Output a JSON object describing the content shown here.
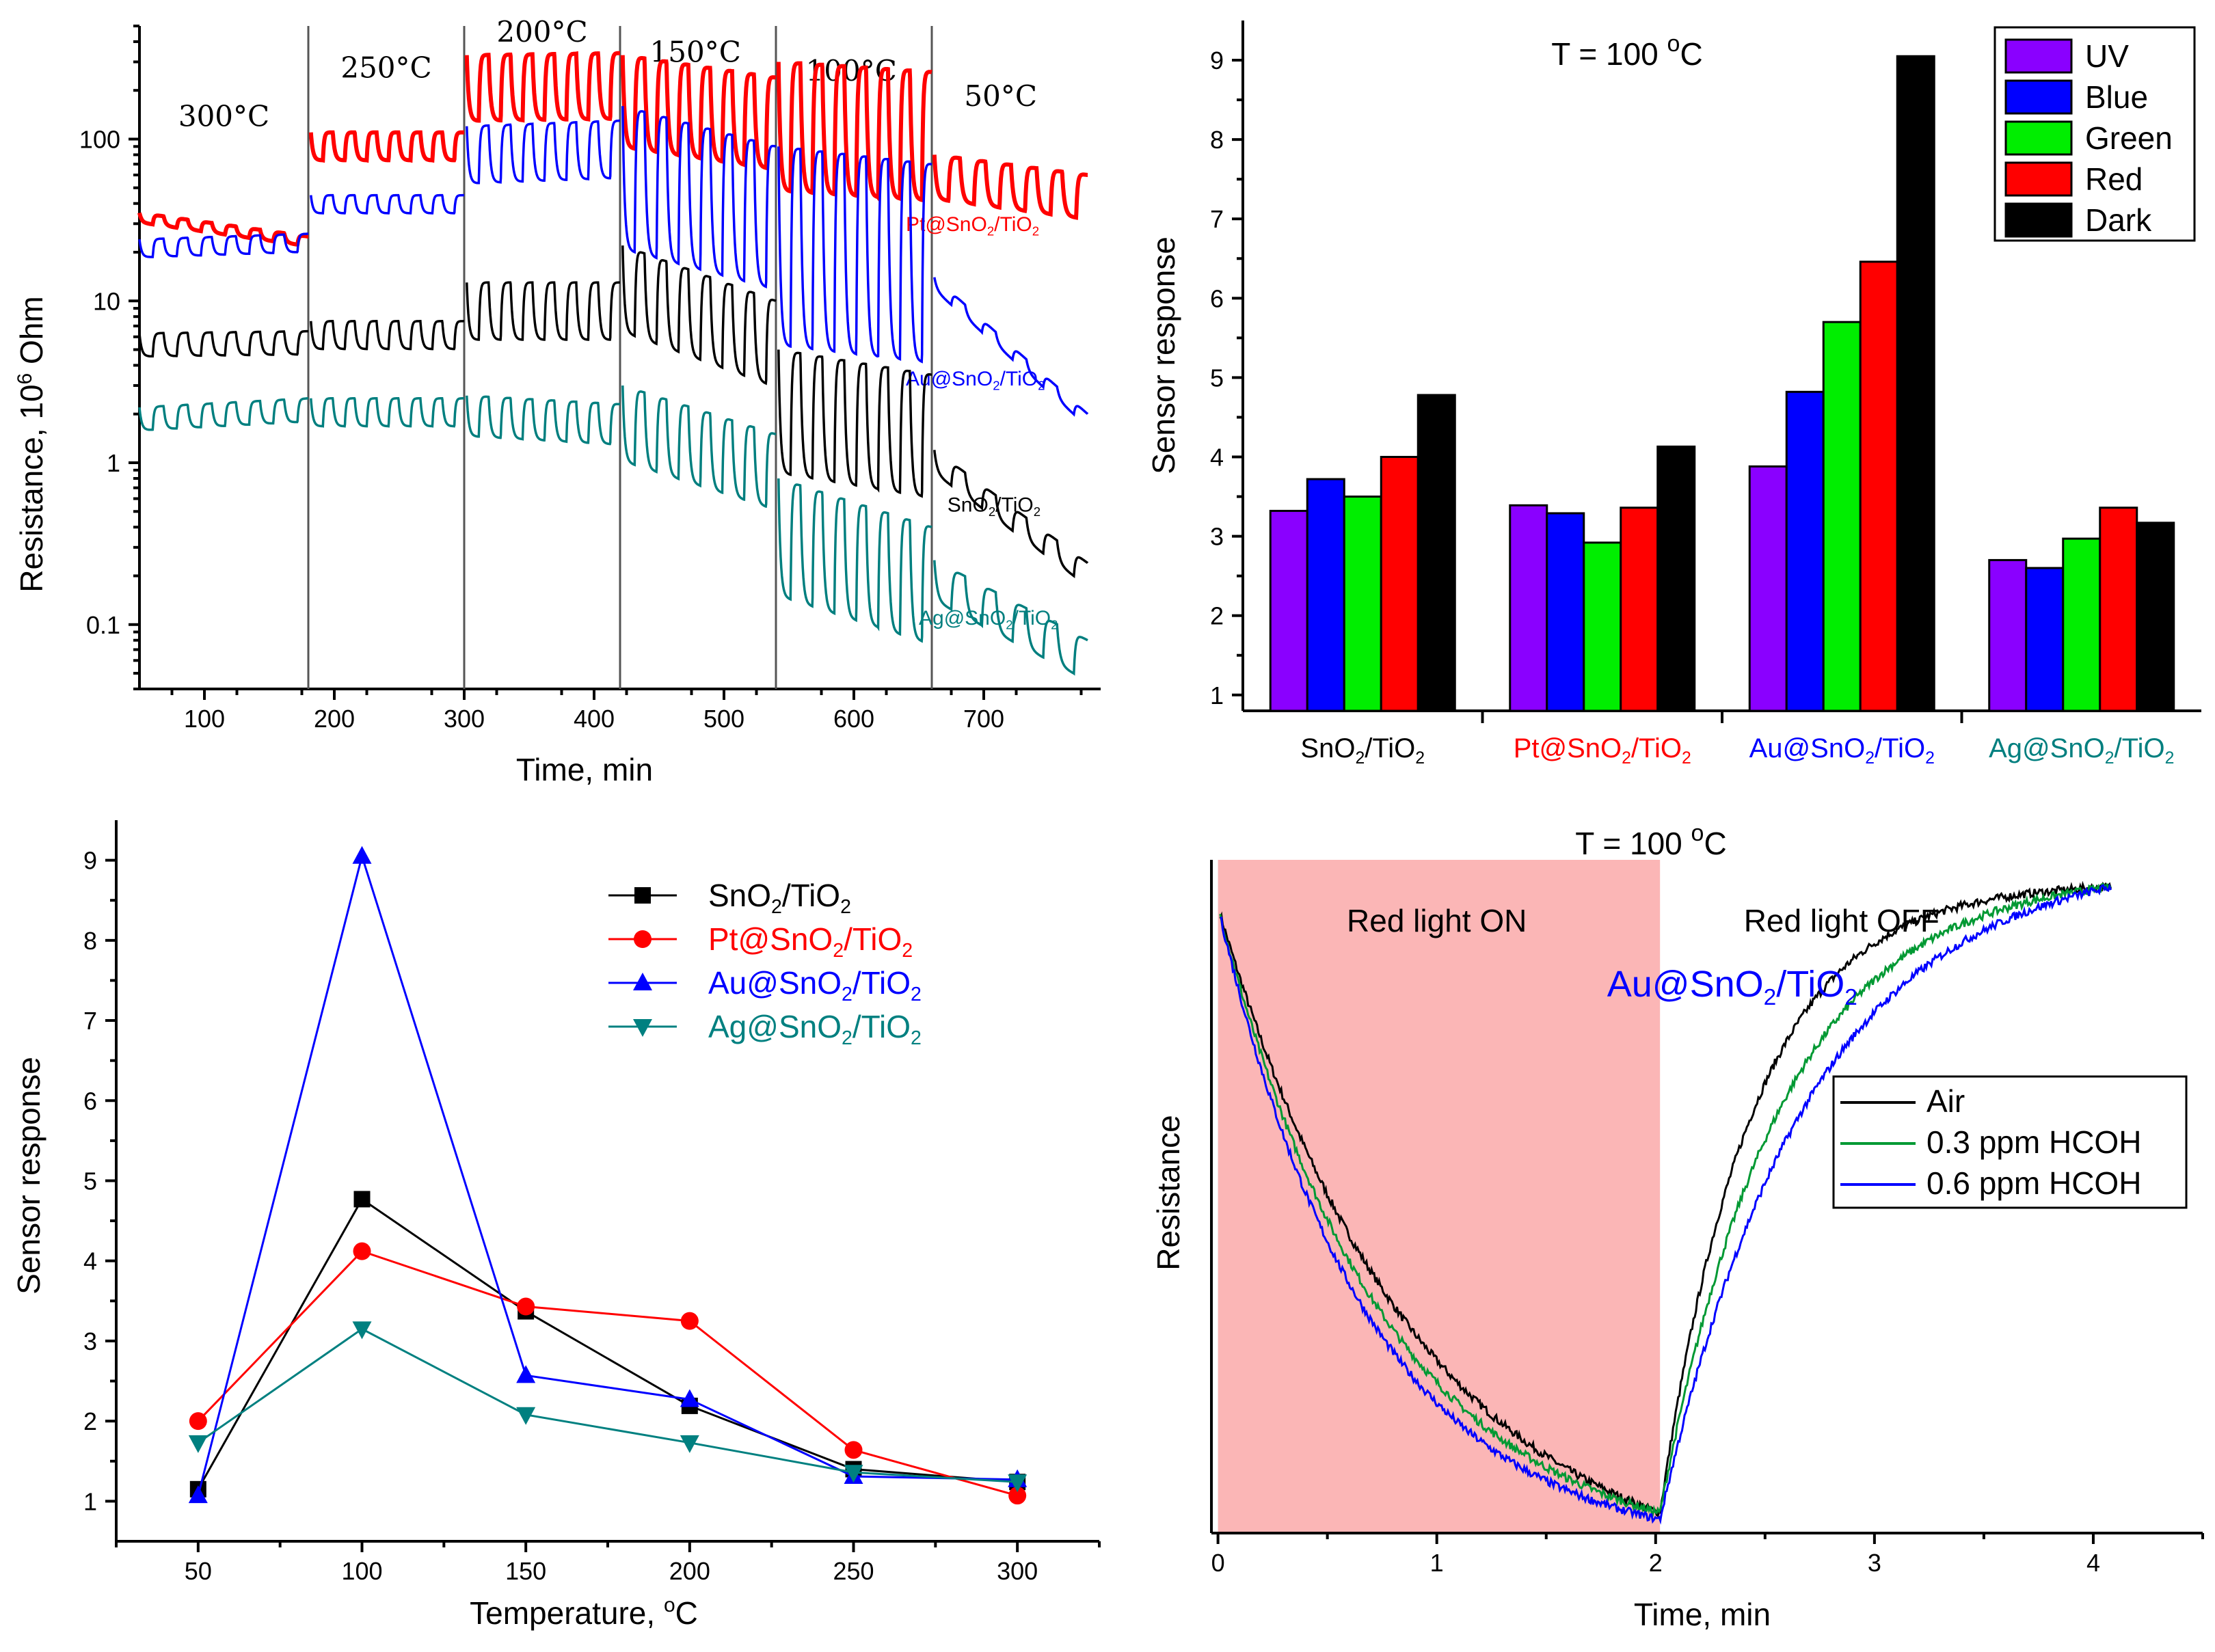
{
  "chart_data": [
    {
      "type": "line",
      "panel": "top-left",
      "title": "",
      "xlabel": "Time, min",
      "ylabel": "Resistance, 10",
      "ylabel_sup": "6",
      "ylabel_suffix": " Ohm",
      "xlim": [
        50,
        790
      ],
      "ylim": [
        0.04,
        500
      ],
      "yscale": "log",
      "xticks": [
        100,
        200,
        300,
        400,
        500,
        600,
        700
      ],
      "yticks": [
        0.1,
        1,
        10,
        100
      ],
      "ytick_labels": [
        "0.1",
        "1",
        "10",
        "100"
      ],
      "dividers": [
        180,
        300,
        420,
        540,
        660
      ],
      "temperature_labels": [
        {
          "text": "300°C",
          "x": 115,
          "y": 120
        },
        {
          "text": "250°C",
          "x": 240,
          "y": 240
        },
        {
          "text": "200°C",
          "x": 360,
          "y": 400
        },
        {
          "text": "150°C",
          "x": 478,
          "y": 300
        },
        {
          "text": "100°C",
          "x": 598,
          "y": 230
        },
        {
          "text": "50°C",
          "x": 713,
          "y": 160
        }
      ],
      "series": [
        {
          "name": "Pt@SnO2/TiO2",
          "color": "#ff0000",
          "label_main": "Pt@SnO",
          "label_mid": "/TiO",
          "label_x": 640,
          "label_y": 27,
          "segments": [
            {
              "x0": 50,
              "x1": 180,
              "base": 35,
              "end": 25,
              "amp": 1.15,
              "cycles": 7
            },
            {
              "x0": 182,
              "x1": 300,
              "base": 110,
              "end": 110,
              "amp": 1.5,
              "cycles": 7
            },
            {
              "x0": 302,
              "x1": 420,
              "base": 330,
              "end": 340,
              "amp": 2.6,
              "cycles": 7
            },
            {
              "x0": 422,
              "x1": 540,
              "base": 330,
              "end": 240,
              "amp": 3.8,
              "cycles": 7
            },
            {
              "x0": 542,
              "x1": 660,
              "base": 300,
              "end": 260,
              "amp": 6.5,
              "cycles": 7
            },
            {
              "x0": 662,
              "x1": 780,
              "base": 80,
              "end": 60,
              "amp": 1.9,
              "cycles": 6
            }
          ]
        },
        {
          "name": "Au@SnO2/TiO2",
          "color": "#0000ff",
          "label_main": "Au@SnO",
          "label_mid": "/TiO",
          "label_x": 640,
          "label_y": 3.0,
          "segments": [
            {
              "x0": 50,
              "x1": 180,
              "base": 24,
              "end": 26,
              "amp": 1.3,
              "cycles": 7
            },
            {
              "x0": 182,
              "x1": 300,
              "base": 45,
              "end": 45,
              "amp": 1.3,
              "cycles": 7
            },
            {
              "x0": 302,
              "x1": 420,
              "base": 120,
              "end": 130,
              "amp": 2.3,
              "cycles": 7
            },
            {
              "x0": 422,
              "x1": 540,
              "base": 160,
              "end": 90,
              "amp": 8,
              "cycles": 7
            },
            {
              "x0": 542,
              "x1": 660,
              "base": 90,
              "end": 70,
              "amp": 18,
              "cycles": 7
            },
            {
              "x0": 662,
              "x1": 780,
              "base": 14,
              "end": 2.0,
              "amp": 1.2,
              "cycles": 5
            }
          ]
        },
        {
          "name": "SnO2/TiO2",
          "color": "#000000",
          "label_main": "SnO",
          "label_mid": "/TiO",
          "label_x": 672,
          "label_y": 0.5,
          "segments": [
            {
              "x0": 50,
              "x1": 180,
              "base": 6.3,
              "end": 6.5,
              "amp": 1.4,
              "cycles": 7
            },
            {
              "x0": 182,
              "x1": 300,
              "base": 7.5,
              "end": 7.5,
              "amp": 1.5,
              "cycles": 7
            },
            {
              "x0": 302,
              "x1": 420,
              "base": 13,
              "end": 13,
              "amp": 2.3,
              "cycles": 7
            },
            {
              "x0": 422,
              "x1": 540,
              "base": 22,
              "end": 10,
              "amp": 3.5,
              "cycles": 7
            },
            {
              "x0": 542,
              "x1": 660,
              "base": 5,
              "end": 3.5,
              "amp": 6,
              "cycles": 7
            },
            {
              "x0": 662,
              "x1": 780,
              "base": 1.2,
              "end": 0.24,
              "amp": 1.4,
              "cycles": 5
            }
          ]
        },
        {
          "name": "Ag@SnO2/TiO2",
          "color": "#007f7f",
          "label_main": "Ag@SnO",
          "label_mid": "/TiO",
          "label_x": 650,
          "label_y": 0.1,
          "segments": [
            {
              "x0": 50,
              "x1": 180,
              "base": 2.2,
              "end": 2.5,
              "amp": 1.4,
              "cycles": 7
            },
            {
              "x0": 182,
              "x1": 300,
              "base": 2.5,
              "end": 2.5,
              "amp": 1.5,
              "cycles": 7
            },
            {
              "x0": 302,
              "x1": 420,
              "base": 2.6,
              "end": 2.3,
              "amp": 1.8,
              "cycles": 7
            },
            {
              "x0": 422,
              "x1": 540,
              "base": 3.0,
              "end": 1.5,
              "amp": 3.0,
              "cycles": 7
            },
            {
              "x0": 542,
              "x1": 660,
              "base": 0.8,
              "end": 0.4,
              "amp": 5.5,
              "cycles": 7
            },
            {
              "x0": 662,
              "x1": 780,
              "base": 0.25,
              "end": 0.08,
              "amp": 1.8,
              "cycles": 5
            }
          ]
        }
      ]
    },
    {
      "type": "bar",
      "panel": "top-right",
      "title": "T = 100 ",
      "title_sup": "o",
      "title_suffix": "C",
      "xlabel": "",
      "ylabel": "Sensor response",
      "ylim": [
        0.8,
        9.5
      ],
      "yticks": [
        1,
        2,
        3,
        4,
        5,
        6,
        7,
        8,
        9
      ],
      "legend_position": "top-right",
      "categories": [
        {
          "main": "SnO",
          "mid": "/TiO",
          "color": "#000000"
        },
        {
          "main": "Pt@SnO",
          "mid": "/TiO",
          "color": "#ff0000"
        },
        {
          "main": "Au@SnO",
          "mid": "/TiO",
          "color": "#0000ff"
        },
        {
          "main": "Ag@SnO",
          "mid": "/TiO",
          "color": "#007f7f"
        }
      ],
      "series": [
        {
          "name": "UV",
          "color": "#8a00ff",
          "values": [
            3.32,
            3.39,
            3.88,
            2.7
          ]
        },
        {
          "name": "Blue",
          "color": "#0000ff",
          "values": [
            3.72,
            3.29,
            4.82,
            2.6
          ]
        },
        {
          "name": "Green",
          "color": "#00ee00",
          "values": [
            3.5,
            2.92,
            5.7,
            2.97
          ]
        },
        {
          "name": "Red",
          "color": "#ff0000",
          "values": [
            4.0,
            3.36,
            6.46,
            3.36
          ]
        },
        {
          "name": "Dark",
          "color": "#000000",
          "values": [
            4.78,
            4.13,
            9.05,
            3.17
          ]
        }
      ]
    },
    {
      "type": "line",
      "panel": "bottom-left",
      "title": "",
      "xlabel": "Temperature, ",
      "xlabel_sup": "o",
      "xlabel_suffix": "C",
      "ylabel": "Sensor response",
      "xlim": [
        25,
        325
      ],
      "ylim": [
        0.5,
        9.5
      ],
      "x": [
        50,
        100,
        150,
        200,
        250,
        300
      ],
      "xticks": [
        50,
        100,
        150,
        200,
        250,
        300
      ],
      "yticks": [
        1,
        2,
        3,
        4,
        5,
        6,
        7,
        8,
        9
      ],
      "legend_position": "top-right",
      "series": [
        {
          "name": "SnO2/TiO2",
          "main": "SnO",
          "mid": "/TiO",
          "color": "#000000",
          "marker": "square",
          "values": [
            1.15,
            4.77,
            3.37,
            2.19,
            1.4,
            1.24
          ]
        },
        {
          "name": "Pt@SnO2/TiO2",
          "main": "Pt@SnO",
          "mid": "/TiO",
          "color": "#ff0000",
          "marker": "circle",
          "values": [
            2.0,
            4.12,
            3.43,
            3.25,
            1.64,
            1.07
          ]
        },
        {
          "name": "Au@SnO2/TiO2",
          "main": "Au@SnO",
          "mid": "/TiO",
          "color": "#0000ff",
          "marker": "triangle-up",
          "values": [
            1.07,
            9.05,
            2.57,
            2.27,
            1.31,
            1.27
          ]
        },
        {
          "name": "Ag@SnO2/TiO2",
          "main": "Ag@SnO",
          "mid": "/TiO",
          "color": "#008080",
          "marker": "triangle-down",
          "values": [
            1.73,
            3.15,
            2.08,
            1.73,
            1.36,
            1.24
          ]
        }
      ]
    },
    {
      "type": "line",
      "panel": "bottom-right",
      "title": "T = 100 ",
      "title_sup": "o",
      "title_suffix": "C",
      "xlabel": "Time, min",
      "ylabel": "Resistance",
      "xlim": [
        -0.03,
        4.5
      ],
      "ylim": [
        0,
        1
      ],
      "xticks": [
        0,
        1,
        2,
        3,
        4
      ],
      "light_on_range": [
        0,
        2.02
      ],
      "light_on_label": "Red light ON",
      "light_off_label": "Red light OFF",
      "sample_main": "Au@SnO",
      "sample_mid": "/TiO",
      "legend_position": "center-right",
      "series": [
        {
          "name": "Air",
          "color": "#000000",
          "start": 0.93,
          "low": 0.03,
          "end": 0.96,
          "decay_shape": 0.45,
          "recovery_tau": 0.42
        },
        {
          "name": "0.3 ppm HCOH",
          "color": "#009933",
          "start": 0.93,
          "low": 0.03,
          "end": 0.96,
          "decay_shape": 0.38,
          "recovery_tau": 0.55
        },
        {
          "name": "0.6 ppm HCOH",
          "color": "#0000ff",
          "start": 0.93,
          "low": 0.02,
          "end": 0.96,
          "decay_shape": 0.34,
          "recovery_tau": 0.68
        }
      ]
    }
  ]
}
